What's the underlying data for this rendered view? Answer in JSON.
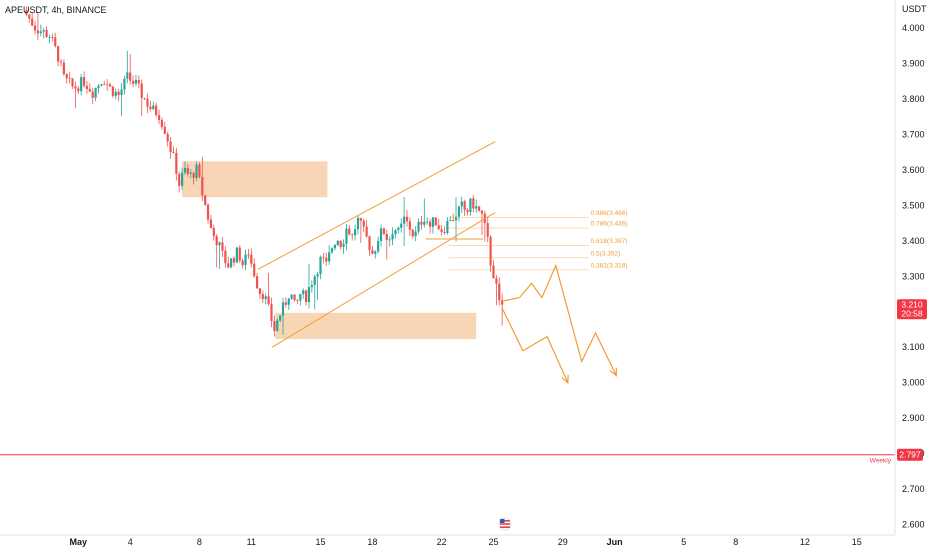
{
  "header": {
    "symbol_line": "APEUSDT, 4h, BINANCE"
  },
  "colors": {
    "up": "#26a69a",
    "down": "#ef5350",
    "zone": "#f5c79b",
    "drawing": "#f29d38",
    "weekly": "#f23645",
    "last_tag": "#f23645"
  },
  "chart_data": {
    "type": "candlestick",
    "y_axis": {
      "unit_label": "USDT",
      "ticks": [
        "4.000",
        "3.900",
        "3.800",
        "3.700",
        "3.600",
        "3.500",
        "3.400",
        "3.300",
        "3.200",
        "3.100",
        "3.000",
        "2.900",
        "2.800",
        "2.700",
        "2.600"
      ],
      "range": [
        2.575,
        4.08
      ]
    },
    "x_axis": {
      "ticks": [
        "May",
        "4",
        "8",
        "11",
        "15",
        "18",
        "22",
        "25",
        "29",
        "Jun",
        "5",
        "8",
        "12",
        "15"
      ]
    },
    "price_path": [
      [
        -2,
        4.05
      ],
      [
        -1.3,
        4.0
      ],
      [
        -0.5,
        3.98
      ],
      [
        0,
        3.92
      ],
      [
        0.3,
        3.86
      ],
      [
        0.9,
        3.83
      ],
      [
        1.5,
        3.85
      ],
      [
        2.0,
        3.82
      ],
      [
        2.6,
        3.86
      ],
      [
        3.0,
        3.83
      ],
      [
        3.5,
        3.81
      ],
      [
        4.0,
        3.86
      ],
      [
        4.5,
        3.84
      ],
      [
        5.0,
        3.8
      ],
      [
        5.4,
        3.77
      ],
      [
        5.8,
        3.76
      ],
      [
        6.2,
        3.71
      ],
      [
        6.5,
        3.66
      ],
      [
        6.8,
        3.61
      ],
      [
        7.0,
        3.56
      ],
      [
        7.3,
        3.6
      ],
      [
        7.6,
        3.58
      ],
      [
        8.0,
        3.6
      ],
      [
        8.3,
        3.54
      ],
      [
        8.6,
        3.48
      ],
      [
        8.9,
        3.42
      ],
      [
        9.2,
        3.4
      ],
      [
        9.5,
        3.36
      ],
      [
        9.8,
        3.33
      ],
      [
        10.1,
        3.35
      ],
      [
        10.4,
        3.37
      ],
      [
        10.7,
        3.33
      ],
      [
        11.0,
        3.37
      ],
      [
        11.2,
        3.33
      ],
      [
        11.4,
        3.3
      ],
      [
        11.6,
        3.26
      ],
      [
        11.9,
        3.25
      ],
      [
        12.2,
        3.2
      ],
      [
        12.5,
        3.15
      ],
      [
        12.8,
        3.19
      ],
      [
        13.1,
        3.22
      ],
      [
        13.4,
        3.26
      ],
      [
        13.7,
        3.21
      ],
      [
        14.0,
        3.25
      ],
      [
        14.3,
        3.24
      ],
      [
        14.6,
        3.28
      ],
      [
        14.9,
        3.31
      ],
      [
        15.2,
        3.35
      ],
      [
        15.5,
        3.33
      ],
      [
        15.8,
        3.38
      ],
      [
        16.1,
        3.41
      ],
      [
        16.4,
        3.39
      ],
      [
        16.7,
        3.44
      ],
      [
        17.0,
        3.41
      ],
      [
        17.3,
        3.46
      ],
      [
        17.6,
        3.43
      ],
      [
        17.9,
        3.4
      ],
      [
        18.2,
        3.36
      ],
      [
        18.5,
        3.41
      ],
      [
        18.8,
        3.43
      ],
      [
        19.1,
        3.4
      ],
      [
        19.4,
        3.44
      ],
      [
        19.7,
        3.42
      ],
      [
        20.0,
        3.46
      ],
      [
        20.3,
        3.44
      ],
      [
        20.6,
        3.41
      ],
      [
        20.9,
        3.45
      ],
      [
        21.2,
        3.47
      ],
      [
        21.5,
        3.44
      ],
      [
        21.8,
        3.46
      ],
      [
        22.1,
        3.43
      ],
      [
        22.4,
        3.44
      ],
      [
        22.7,
        3.47
      ],
      [
        23.0,
        3.46
      ],
      [
        23.3,
        3.5
      ],
      [
        23.6,
        3.48
      ],
      [
        23.9,
        3.51
      ],
      [
        24.2,
        3.49
      ],
      [
        24.5,
        3.47
      ],
      [
        24.8,
        3.41
      ],
      [
        25.0,
        3.34
      ],
      [
        25.25,
        3.29
      ],
      [
        25.5,
        3.22
      ]
    ],
    "zones": [
      {
        "d1": 7.0,
        "d2": 15.4,
        "p1": 3.523,
        "p2": 3.624
      },
      {
        "d1": 12.4,
        "d2": 24.0,
        "p1": 3.123,
        "p2": 3.197
      }
    ],
    "channel": [
      {
        "d1": 12.2,
        "p1": 3.1,
        "d2": 25.1,
        "p2": 3.48
      },
      {
        "d1": 11.4,
        "p1": 3.32,
        "d2": 25.1,
        "p2": 3.68
      }
    ],
    "fib": {
      "start_day": 22.4,
      "end_day": 30.5,
      "levels": [
        {
          "label": "0.886(3.466)",
          "price": 3.466
        },
        {
          "label": "0.786(3.436)",
          "price": 3.436
        },
        {
          "label": "0.618(3.387)",
          "price": 3.387
        },
        {
          "label": "0.5(3.352)",
          "price": 3.352
        },
        {
          "label": "0.382(3.318)",
          "price": 3.318
        }
      ]
    },
    "flat_line": {
      "d1": 21.1,
      "d2": 24.4,
      "price": 3.405
    },
    "projection_a": [
      [
        25.5,
        3.21
      ],
      [
        26.7,
        3.09
      ],
      [
        28.1,
        3.13
      ],
      [
        29.3,
        3.0
      ]
    ],
    "projection_b": [
      [
        25.5,
        3.23
      ],
      [
        26.5,
        3.24
      ],
      [
        27.2,
        3.28
      ],
      [
        27.8,
        3.24
      ],
      [
        28.6,
        3.33
      ],
      [
        30.1,
        3.06
      ],
      [
        30.9,
        3.14
      ],
      [
        32.1,
        3.02
      ]
    ],
    "weekly_line": {
      "price": 2.797,
      "label": "Weekly"
    },
    "last_price": {
      "price": "3.210",
      "countdown": "20:58"
    }
  }
}
